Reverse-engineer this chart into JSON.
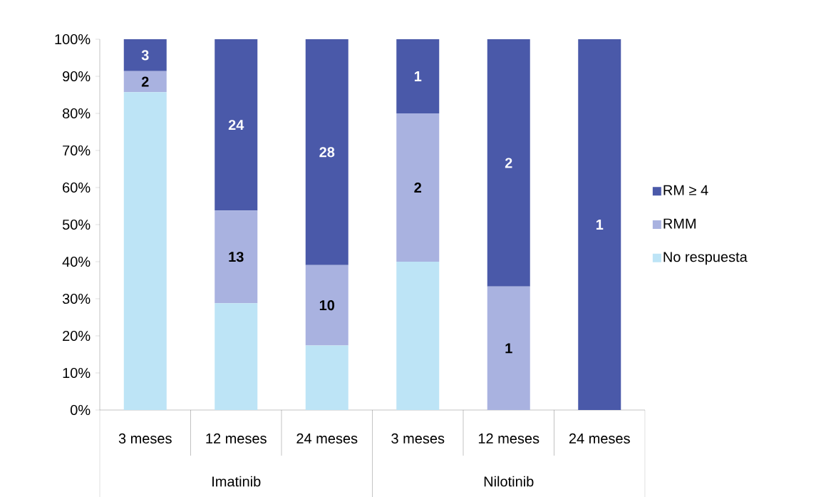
{
  "chart_data": {
    "type": "bar",
    "stacked": true,
    "categories": [
      "3 meses",
      "12 meses",
      "24 meses",
      "3 meses",
      "12 meses",
      "24 meses"
    ],
    "series": [
      {
        "name": "No respuesta",
        "color": "#bde4f6",
        "values": [
          85.7,
          28.8,
          17.4,
          40,
          0,
          0
        ]
      },
      {
        "name": "RMM",
        "color": "#a9b2e0",
        "values": [
          5.7,
          25,
          21.7,
          40,
          33.3,
          0
        ]
      },
      {
        "name": "RM ≥ 4",
        "color": "#4a59a9",
        "values": [
          8.6,
          46.2,
          60.9,
          20,
          66.7,
          100
        ]
      }
    ],
    "ylim": [
      0,
      100
    ],
    "yticks": [
      {
        "value": 0,
        "label": "0%"
      },
      {
        "value": 10,
        "label": "10%"
      },
      {
        "value": 20,
        "label": "20%"
      },
      {
        "value": 30,
        "label": "30%"
      },
      {
        "value": 40,
        "label": "40%"
      },
      {
        "value": 50,
        "label": "50%"
      },
      {
        "value": 60,
        "label": "60%"
      },
      {
        "value": 70,
        "label": "70%"
      },
      {
        "value": 80,
        "label": "80%"
      },
      {
        "value": 90,
        "label": "90%"
      },
      {
        "value": 100,
        "label": "100%"
      }
    ],
    "legend": "right",
    "annotations": [
      "3",
      "2",
      "24",
      "13",
      "28",
      "10",
      "1",
      "2",
      "2",
      "1",
      "1",
      "Imatinib",
      "Nilotinib"
    ]
  }
}
